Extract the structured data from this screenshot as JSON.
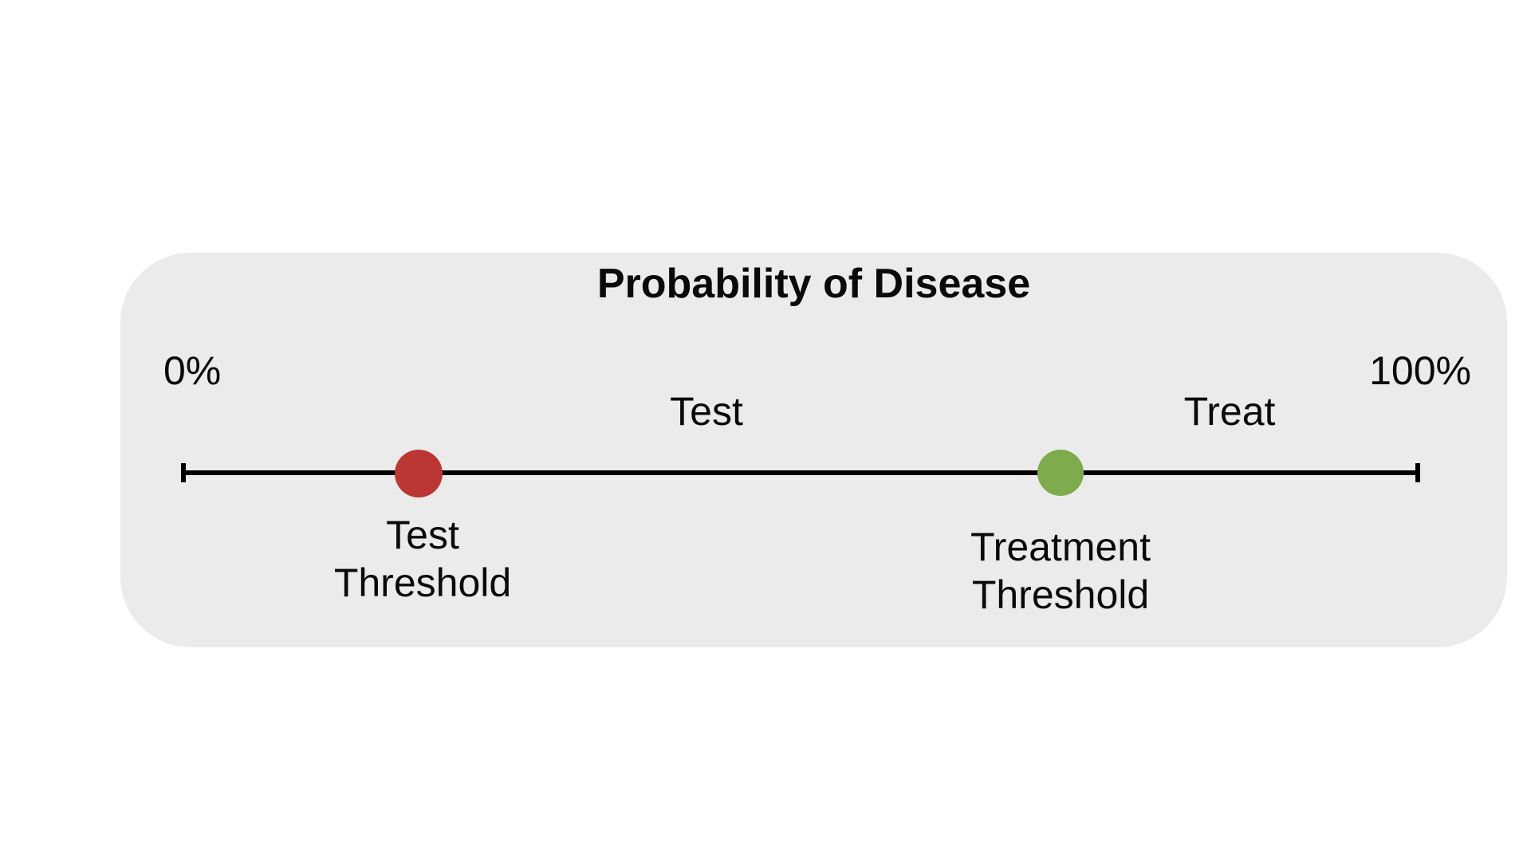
{
  "figure": {
    "title": "Probability of Disease",
    "axis": {
      "start_label": "0%",
      "end_label": "100%"
    },
    "zones": {
      "test_label": "Test",
      "treat_label": "Treat"
    },
    "thresholds": {
      "test": {
        "label_line1": "Test",
        "label_line2": "Threshold",
        "color": "#BB3733",
        "position_pct": 19
      },
      "treatment": {
        "label_line1": "Treatment",
        "label_line2": "Threshold",
        "color": "#7EAB4C",
        "position_pct": 71
      }
    },
    "colors": {
      "card_background": "#EBEBEB",
      "axis": "#000000",
      "test_dot": "#BB3733",
      "treatment_dot": "#7EAB4C"
    }
  }
}
